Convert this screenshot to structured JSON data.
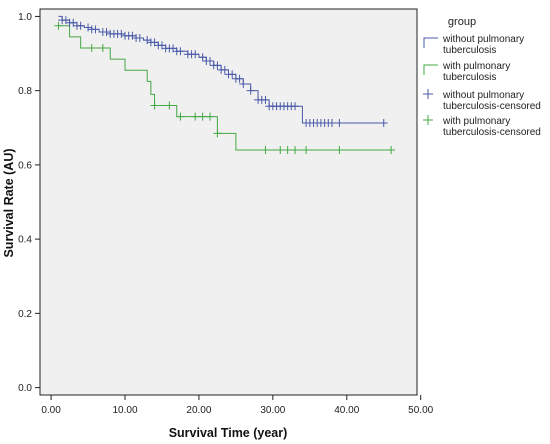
{
  "chart_data": {
    "type": "line",
    "xlabel": "Survival Time (year)",
    "ylabel": "Survival Rate (AU)",
    "xlim": [
      -1.5,
      49.5
    ],
    "ylim": [
      -0.02,
      1.02
    ],
    "x_ticks": [
      0,
      10,
      20,
      30,
      40,
      50
    ],
    "x_tick_labels": [
      "0.00",
      "10.00",
      "20.00",
      "30.00",
      "40.00",
      "50.00"
    ],
    "y_ticks": [
      0,
      0.2,
      0.4,
      0.6,
      0.8,
      1.0
    ],
    "y_tick_labels": [
      "0.0",
      "0.2",
      "0.4",
      "0.6",
      "0.8",
      "1.0"
    ],
    "grid": false,
    "legend": {
      "title": "group",
      "placement": "right, outside plot",
      "entries": [
        {
          "label_lines": [
            "without pulmonary",
            "tuberculosis"
          ],
          "series": "without",
          "marker": "line"
        },
        {
          "label_lines": [
            "with pulmonary",
            "tuberculosis"
          ],
          "series": "with",
          "marker": "line"
        },
        {
          "label_lines": [
            "without pulmonary",
            "tuberculosis-censored"
          ],
          "series": "without",
          "marker": "plus"
        },
        {
          "label_lines": [
            "with pulmonary",
            "tuberculosis-censored"
          ],
          "series": "with",
          "marker": "plus"
        }
      ]
    },
    "series": [
      {
        "key": "without",
        "color": "#4a5aa8",
        "steps": [
          [
            1,
            1.0
          ],
          [
            1.5,
            0.99
          ],
          [
            2.5,
            0.983
          ],
          [
            3.5,
            0.975
          ],
          [
            4.5,
            0.97
          ],
          [
            5.5,
            0.965
          ],
          [
            6.5,
            0.958
          ],
          [
            8,
            0.953
          ],
          [
            10,
            0.948
          ],
          [
            11.5,
            0.942
          ],
          [
            12.5,
            0.936
          ],
          [
            13.5,
            0.93
          ],
          [
            14.5,
            0.922
          ],
          [
            15.5,
            0.914
          ],
          [
            17,
            0.906
          ],
          [
            18.5,
            0.898
          ],
          [
            20,
            0.89
          ],
          [
            21,
            0.88
          ],
          [
            22,
            0.868
          ],
          [
            23,
            0.856
          ],
          [
            24,
            0.844
          ],
          [
            25,
            0.832
          ],
          [
            26,
            0.818
          ],
          [
            27,
            0.8
          ],
          [
            28,
            0.775
          ],
          [
            29.5,
            0.758
          ],
          [
            34,
            0.713
          ],
          [
            45,
            0.713
          ]
        ],
        "censored_x": [
          1.5,
          2,
          2.5,
          3,
          3.5,
          4,
          5,
          5.5,
          6,
          7,
          7.5,
          8,
          8.5,
          9,
          9.5,
          10,
          10.5,
          11,
          11.5,
          12,
          13,
          13.5,
          14,
          14.5,
          15,
          15.5,
          16,
          16.5,
          17,
          17.5,
          18.5,
          19,
          19.5,
          20.5,
          21,
          21.5,
          22,
          22.5,
          23,
          23.5,
          24,
          24.5,
          25,
          25.5,
          26,
          27,
          28,
          28.5,
          29,
          29.5,
          30,
          30.5,
          31,
          31.5,
          32,
          32.5,
          33,
          34.5,
          35,
          35.5,
          36,
          36.5,
          37,
          37.5,
          38,
          39,
          45
        ]
      },
      {
        "key": "with",
        "color": "#44a844",
        "steps": [
          [
            1,
            0.975
          ],
          [
            2.5,
            0.945
          ],
          [
            4,
            0.915
          ],
          [
            8,
            0.885
          ],
          [
            10,
            0.855
          ],
          [
            13,
            0.825
          ],
          [
            13.5,
            0.79
          ],
          [
            14,
            0.76
          ],
          [
            17,
            0.73
          ],
          [
            22.5,
            0.685
          ],
          [
            25,
            0.64
          ],
          [
            46,
            0.64
          ]
        ],
        "censored_x": [
          1,
          5.5,
          7,
          14,
          16,
          17.5,
          19.5,
          20.5,
          21.5,
          22.5,
          29,
          31,
          32,
          33,
          34.5,
          39,
          46
        ]
      }
    ]
  }
}
